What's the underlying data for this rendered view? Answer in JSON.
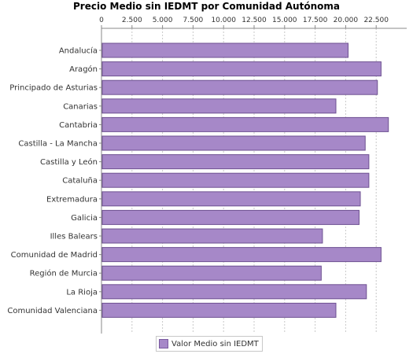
{
  "chart_data": {
    "type": "bar",
    "orientation": "horizontal",
    "title": "Precio Medio sin IEDMT por Comunidad Autónoma",
    "categories": [
      "Andalucía",
      "Aragón",
      "Principado de Asturias",
      "Canarias",
      "Cantabria",
      "Castilla - La Mancha",
      "Castilla y León",
      "Cataluña",
      "Extremadura",
      "Galicia",
      "Illes Balears",
      "Comunidad de Madrid",
      "Región de Murcia",
      "La Rioja",
      "Comunidad Valenciana"
    ],
    "series": [
      {
        "name": "Valor Medio sin IEDMT",
        "color": "#a688c8",
        "values": [
          20200,
          22900,
          22600,
          19200,
          23500,
          21600,
          21900,
          21900,
          21200,
          21100,
          18100,
          22900,
          18000,
          21700,
          19200
        ]
      }
    ],
    "x_ticks": [
      "0",
      "2.500",
      "5.000",
      "7.500",
      "10.000",
      "12.500",
      "15.000",
      "17.500",
      "20.000",
      "22.500"
    ],
    "xlim": [
      0,
      25000
    ],
    "x_axis_position": "top",
    "grid": "vertical dashed",
    "legend": "bottom"
  }
}
